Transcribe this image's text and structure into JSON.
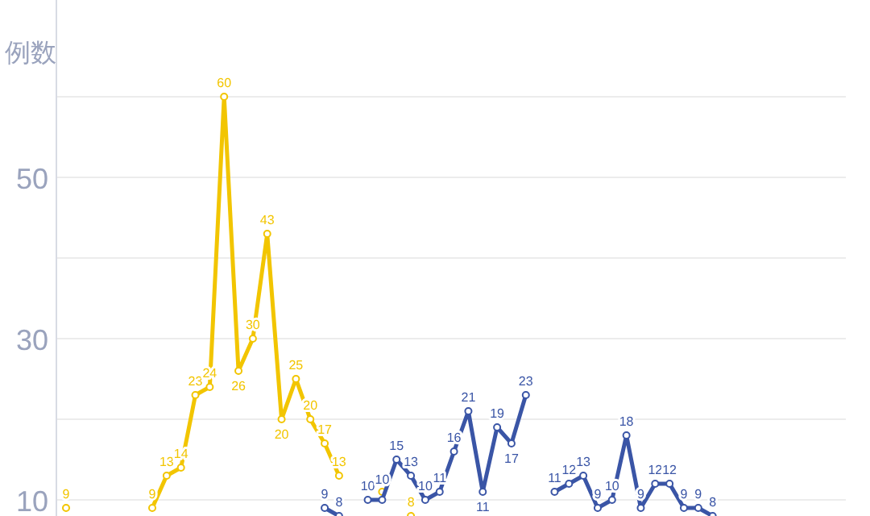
{
  "chart_data": {
    "type": "line",
    "ylabel": "例数",
    "categories": [
      null,
      null,
      null,
      null,
      null,
      null,
      null,
      null,
      null,
      null,
      null,
      null,
      null,
      null,
      null,
      null,
      null,
      null,
      null,
      null,
      null,
      null,
      null,
      null,
      null,
      null,
      null,
      null,
      null,
      null,
      null,
      null,
      null,
      null,
      null,
      null,
      null,
      null,
      null,
      null,
      null,
      null,
      null,
      null,
      null,
      null,
      null,
      null,
      null,
      null,
      null,
      null,
      null,
      null,
      null
    ],
    "series": [
      {
        "color": "#f2c500",
        "values": [
          9,
          null,
          null,
          null,
          null,
          null,
          9,
          13,
          14,
          23,
          24,
          60,
          26,
          30,
          43,
          20,
          25,
          20,
          17,
          13,
          null,
          null,
          11,
          null,
          8,
          null,
          null,
          null,
          null,
          null,
          null,
          null,
          null,
          null,
          null,
          null,
          null,
          null,
          null,
          null,
          null,
          null,
          null,
          null,
          null,
          null,
          null,
          null,
          null,
          null,
          null,
          null,
          null,
          null,
          null
        ],
        "value_labels": [
          "9",
          null,
          null,
          null,
          null,
          null,
          "9",
          "13",
          "14",
          "23",
          "24",
          "60",
          "26",
          "30",
          "43",
          "20",
          "25",
          "20",
          "17",
          "13",
          null,
          null,
          null,
          null,
          "8",
          null,
          null,
          null,
          null,
          null,
          null,
          null,
          null,
          null,
          null,
          null,
          null,
          null,
          null,
          null,
          null,
          null,
          null,
          null,
          null,
          null,
          null,
          null,
          null,
          null,
          null,
          null,
          null,
          null,
          null
        ]
      },
      {
        "color": "#3a55a6",
        "values": [
          null,
          null,
          null,
          null,
          null,
          null,
          null,
          null,
          null,
          null,
          null,
          null,
          null,
          null,
          null,
          null,
          null,
          null,
          9,
          8,
          null,
          10,
          10,
          15,
          13,
          10,
          11,
          16,
          21,
          11,
          19,
          17,
          23,
          null,
          11,
          12,
          13,
          9,
          10,
          18,
          9,
          12,
          12,
          9,
          9,
          8,
          null,
          null,
          null,
          null,
          null,
          null,
          null,
          null,
          null
        ]
      }
    ],
    "ylim": [
      8,
      72
    ],
    "yticks": [
      10,
      {
        "value": 20,
        "label": null
      },
      30,
      {
        "value": 40,
        "label": null
      },
      50,
      {
        "value": 60,
        "label": null
      }
    ],
    "grid": "y",
    "marker": "circle",
    "line_style": "solid",
    "data_labels": true,
    "tick_labels": "y"
  }
}
